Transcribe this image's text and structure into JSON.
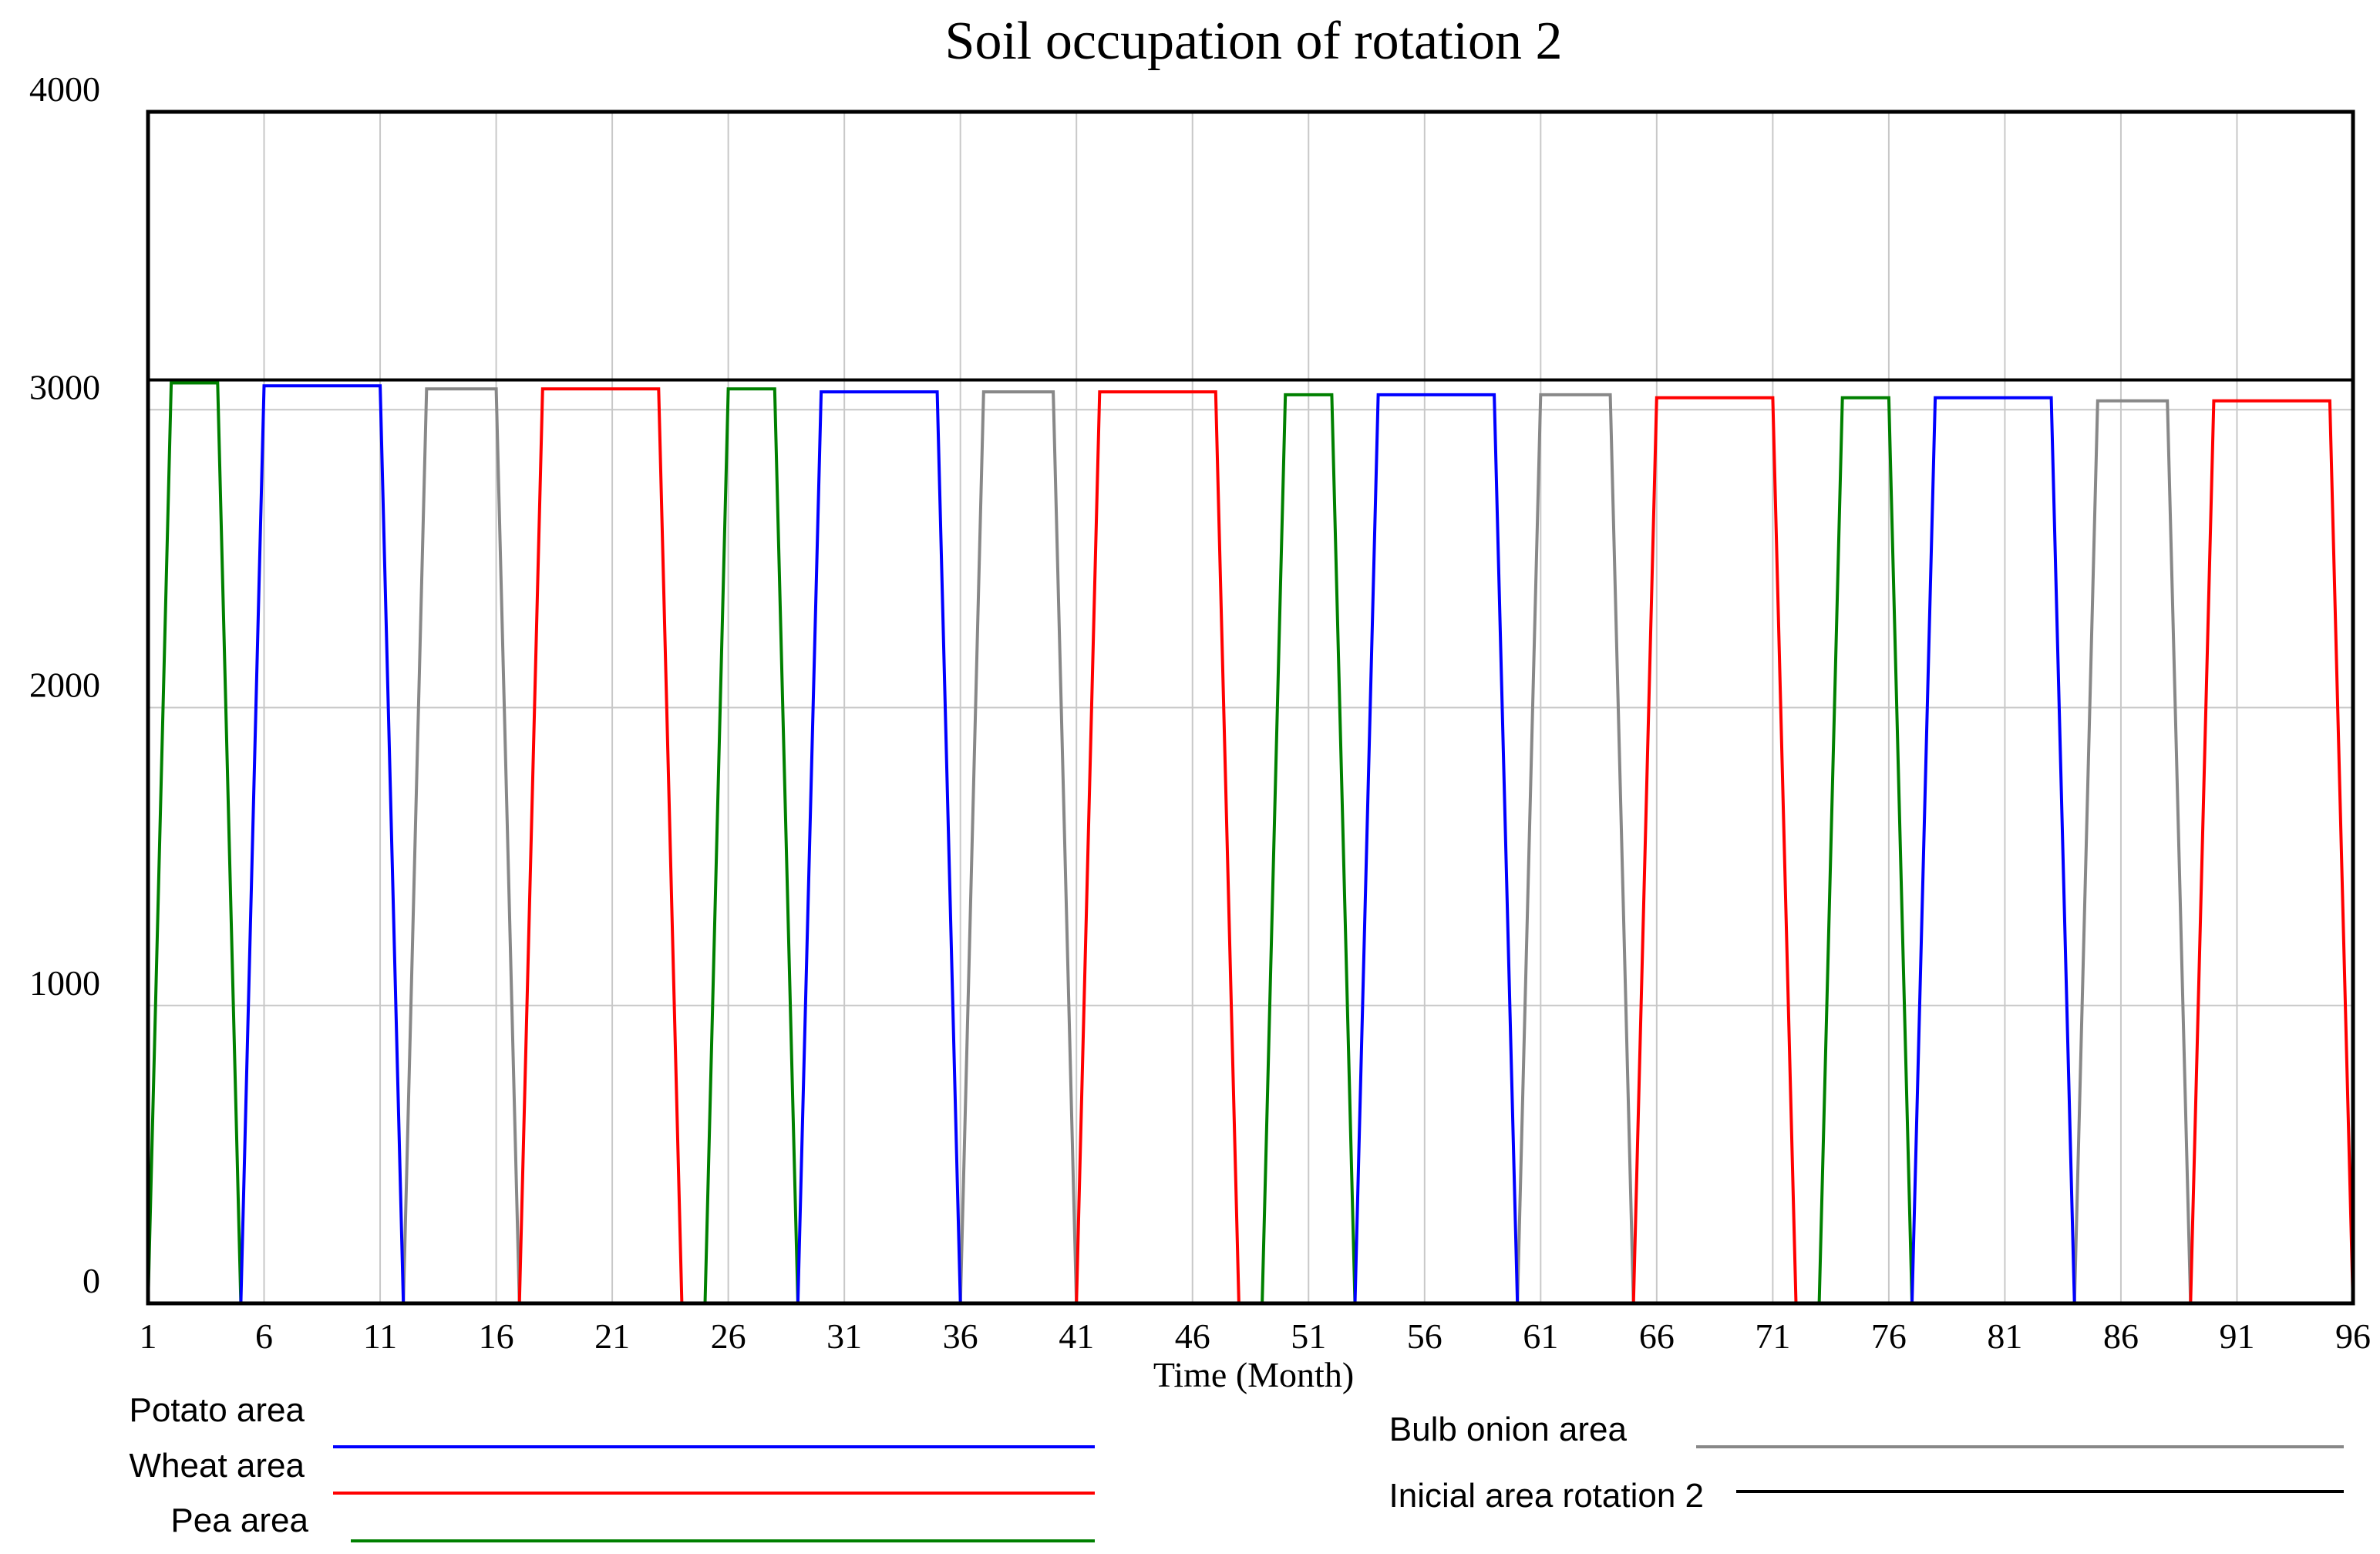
{
  "chart_data": {
    "type": "line",
    "title": "Soil occupation of rotation 2",
    "xlabel": "Time (Month)",
    "ylabel": "",
    "xlim": [
      1,
      96
    ],
    "ylim": [
      0,
      4000
    ],
    "x_ticks": [
      1,
      6,
      11,
      16,
      21,
      26,
      31,
      36,
      41,
      46,
      51,
      56,
      61,
      66,
      71,
      76,
      81,
      86,
      91,
      96
    ],
    "y_ticks": [
      0,
      1000,
      2000,
      3000,
      4000
    ],
    "grid": true,
    "series": [
      {
        "name": "Potato area",
        "color": "#0000ff",
        "x": [
          1,
          5,
          6,
          11,
          12,
          29,
          30,
          35,
          36,
          53,
          54,
          59,
          60,
          77,
          78,
          83,
          84,
          96
        ],
        "y": [
          0,
          0,
          3080,
          3080,
          0,
          0,
          3060,
          3060,
          0,
          0,
          3050,
          3050,
          0,
          0,
          3040,
          3040,
          0,
          0
        ]
      },
      {
        "name": "Wheat area",
        "color": "#ff0000",
        "x": [
          1,
          17,
          18,
          23,
          24,
          41,
          42,
          47,
          48,
          65,
          66,
          71,
          72,
          89,
          90,
          95,
          96
        ],
        "y": [
          0,
          0,
          3070,
          3070,
          0,
          0,
          3060,
          3060,
          0,
          0,
          3040,
          3040,
          0,
          0,
          3030,
          3030,
          0
        ]
      },
      {
        "name": "Pea area",
        "color": "#008000",
        "x": [
          1,
          2,
          4,
          5,
          25,
          26,
          28,
          29,
          49,
          50,
          52,
          53,
          73,
          74,
          76,
          77,
          96
        ],
        "y": [
          0,
          3090,
          3090,
          0,
          0,
          3070,
          3070,
          0,
          0,
          3050,
          3050,
          0,
          0,
          3040,
          3040,
          0,
          0
        ]
      },
      {
        "name": "Bulb onion area",
        "color": "#888888",
        "x": [
          1,
          12,
          13,
          16,
          17,
          36,
          37,
          40,
          41,
          60,
          61,
          64,
          65,
          84,
          85,
          88,
          89,
          96
        ],
        "y": [
          0,
          0,
          3070,
          3070,
          0,
          0,
          3060,
          3060,
          0,
          0,
          3050,
          3050,
          0,
          0,
          3030,
          3030,
          0,
          0
        ]
      },
      {
        "name": "Inicial area rotation 2",
        "color": "#000000",
        "x": [
          1,
          96
        ],
        "y": [
          3100,
          3100
        ]
      }
    ]
  }
}
